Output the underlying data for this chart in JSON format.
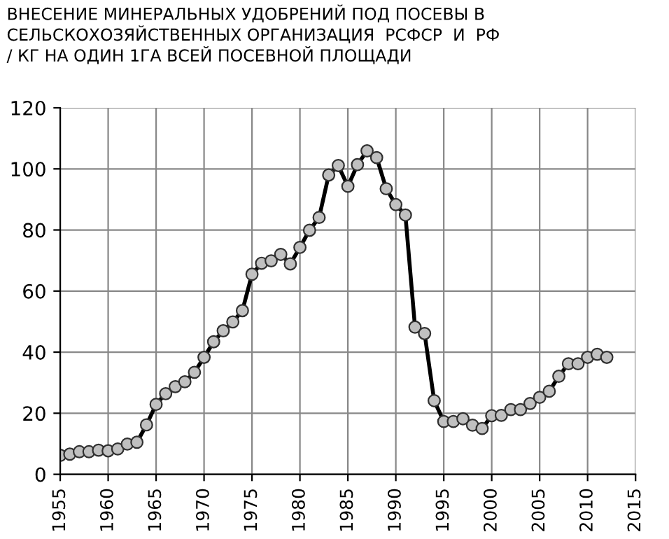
{
  "chart_data": {
    "type": "line",
    "title": "ВНЕСЕНИЕ МИНЕРАЛЬНЫХ УДОБРЕНИЙ ПОД ПОСЕВЫ В СЕЛЬСКОХОЗЯЙСТВЕННЫХ ОРГАНИЗАЦИЯ  РСФСР  И  РФ\n/ КГ НА ОДИН 1ГА ВСЕЙ ПОСЕВНОЙ ПЛОЩАДИ",
    "x": [
      1955,
      1956,
      1957,
      1958,
      1959,
      1960,
      1961,
      1962,
      1963,
      1964,
      1965,
      1966,
      1967,
      1968,
      1969,
      1970,
      1971,
      1972,
      1973,
      1974,
      1975,
      1976,
      1977,
      1978,
      1979,
      1980,
      1981,
      1982,
      1983,
      1984,
      1985,
      1986,
      1987,
      1988,
      1989,
      1990,
      1991,
      1992,
      1993,
      1994,
      1995,
      1996,
      1997,
      1998,
      1999,
      2000,
      2001,
      2002,
      2003,
      2004,
      2005,
      2006,
      2007,
      2008,
      2009,
      2010,
      2011,
      2012
    ],
    "series": [
      {
        "color": "#000000",
        "values": [
          6.2,
          6.6,
          7.4,
          7.4,
          7.9,
          7.7,
          8.3,
          9.9,
          10.5,
          16.2,
          22.9,
          26.4,
          28.7,
          30.3,
          33.4,
          38.3,
          43.4,
          47,
          49.9,
          53.6,
          65.5,
          69.1,
          69.9,
          72,
          68.9,
          74.3,
          79.9,
          84.1,
          98,
          101.1,
          94.3,
          101.4,
          105.9,
          103.7,
          93.5,
          88.3,
          84.9,
          48.2,
          46.1,
          24.1,
          17.3,
          17.3,
          18.2,
          16.1,
          15,
          19.2,
          19.3,
          21.2,
          21.2,
          23.2,
          25.2,
          27.2,
          32.1,
          36.2,
          36.2,
          38.3,
          39.3,
          38.3
        ]
      }
    ],
    "xlim": [
      1955,
      2015
    ],
    "xticks": [
      1955,
      1960,
      1965,
      1970,
      1975,
      1980,
      1985,
      1990,
      1995,
      2000,
      2005,
      2010,
      2015
    ],
    "ylim": [
      0,
      120
    ],
    "yticks": [
      0,
      20,
      40,
      60,
      80,
      100,
      120
    ],
    "grid": true,
    "marker": "circle",
    "line_style": "solid",
    "legend": false
  }
}
